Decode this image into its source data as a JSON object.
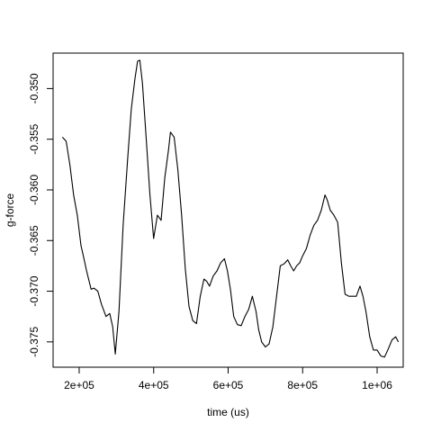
{
  "chart_data": {
    "type": "line",
    "title": "",
    "xlabel": "time (us)",
    "ylabel": "g-force",
    "xlim": [
      130000,
      1070000
    ],
    "ylim": [
      -0.3775,
      -0.3465
    ],
    "x_ticks": [
      200000,
      400000,
      600000,
      800000,
      1000000
    ],
    "x_tick_labels": [
      "2e+05",
      "4e+05",
      "6e+05",
      "8e+05",
      "1e+06"
    ],
    "y_ticks": [
      -0.375,
      -0.37,
      -0.365,
      -0.36,
      -0.355,
      -0.35
    ],
    "y_tick_labels": [
      "-0.375",
      "-0.370",
      "-0.365",
      "-0.360",
      "-0.355",
      "-0.350"
    ],
    "grid": false,
    "line_color": "#000000",
    "series": [
      {
        "x": [
          155000,
          165000,
          175000,
          185000,
          195000,
          205000,
          213000,
          220000,
          232000,
          240000,
          250000,
          260000,
          272000,
          282000,
          290000,
          297000,
          307000,
          318000,
          330000,
          340000,
          350000,
          357000,
          363000,
          370000,
          380000,
          390000,
          400000,
          410000,
          420000,
          430000,
          440000,
          445000,
          455000,
          465000,
          475000,
          485000,
          495000,
          505000,
          515000,
          525000,
          535000,
          542000,
          550000,
          560000,
          570000,
          580000,
          590000,
          598000,
          606000,
          615000,
          625000,
          635000,
          645000,
          655000,
          665000,
          675000,
          682000,
          690000,
          700000,
          710000,
          720000,
          730000,
          740000,
          750000,
          760000,
          768000,
          776000,
          784000,
          792000,
          800000,
          810000,
          820000,
          830000,
          840000,
          850000,
          860000,
          866000,
          874000,
          884000,
          894000,
          904000,
          914000,
          924000,
          934000,
          944000,
          954000,
          962000,
          970000,
          980000,
          990000,
          1000000,
          1010000,
          1020000,
          1030000,
          1040000,
          1050000,
          1057000
        ],
        "y": [
          -0.3548,
          -0.3552,
          -0.3575,
          -0.3605,
          -0.3625,
          -0.3655,
          -0.3668,
          -0.368,
          -0.3698,
          -0.3697,
          -0.37,
          -0.3713,
          -0.3725,
          -0.3722,
          -0.3735,
          -0.3762,
          -0.372,
          -0.3635,
          -0.357,
          -0.352,
          -0.349,
          -0.3473,
          -0.3472,
          -0.3495,
          -0.355,
          -0.3605,
          -0.3648,
          -0.3625,
          -0.363,
          -0.3588,
          -0.356,
          -0.3543,
          -0.3548,
          -0.358,
          -0.3625,
          -0.3678,
          -0.3715,
          -0.3729,
          -0.3732,
          -0.3705,
          -0.3688,
          -0.369,
          -0.3695,
          -0.3685,
          -0.368,
          -0.3672,
          -0.3668,
          -0.368,
          -0.3698,
          -0.3725,
          -0.3733,
          -0.3734,
          -0.3725,
          -0.3718,
          -0.3705,
          -0.372,
          -0.3738,
          -0.375,
          -0.3755,
          -0.3752,
          -0.3735,
          -0.3705,
          -0.3675,
          -0.3673,
          -0.3669,
          -0.3675,
          -0.368,
          -0.3675,
          -0.3672,
          -0.3665,
          -0.3658,
          -0.3645,
          -0.3635,
          -0.363,
          -0.362,
          -0.3605,
          -0.361,
          -0.362,
          -0.3625,
          -0.3632,
          -0.3672,
          -0.3703,
          -0.3705,
          -0.3705,
          -0.3705,
          -0.3695,
          -0.3705,
          -0.372,
          -0.3745,
          -0.3758,
          -0.3758,
          -0.3764,
          -0.3765,
          -0.3757,
          -0.3748,
          -0.3745,
          -0.375
        ]
      }
    ]
  }
}
